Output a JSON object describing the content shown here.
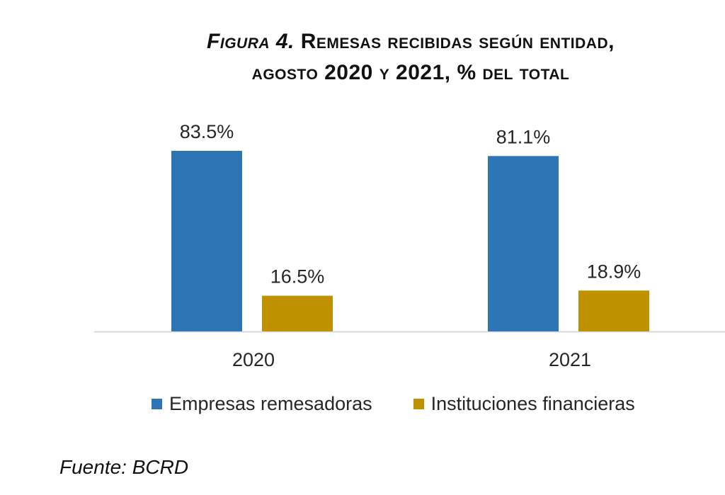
{
  "chart_data": {
    "type": "bar",
    "title_label": "Figura 4.",
    "title_rest": "Remesas recibidas según entidad,",
    "title_line2": "agosto 2020 y 2021, % del total",
    "categories": [
      "2020",
      "2021"
    ],
    "series": [
      {
        "name": "Empresas remesadoras",
        "color": "#2E75B6",
        "values": [
          83.5,
          81.1
        ],
        "labels": [
          "83.5%",
          "81.1%"
        ]
      },
      {
        "name": "Instituciones financieras",
        "color": "#BF9000",
        "values": [
          16.5,
          18.9
        ],
        "labels": [
          "16.5%",
          "18.9%"
        ]
      }
    ],
    "ylim": [
      0,
      100
    ],
    "grid": false,
    "legend_position": "bottom",
    "axis_color": "#D9D9D9"
  },
  "source": "Fuente: BCRD"
}
